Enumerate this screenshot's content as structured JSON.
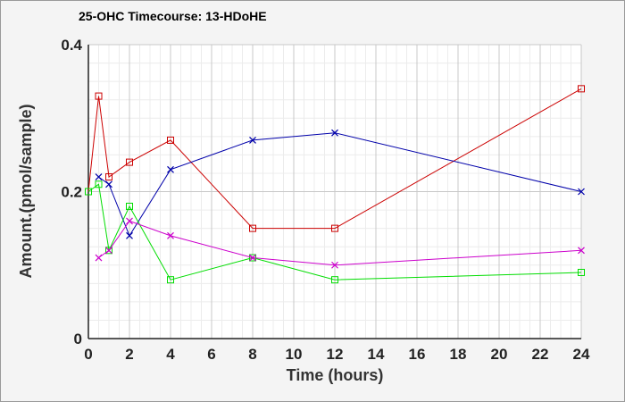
{
  "chart_data": {
    "type": "line",
    "title": "25-OHC Timecourse: 13-HDoHE",
    "xlabel": "Time (hours)",
    "ylabel": "Amount.(pmol/sample)",
    "xlim": [
      0,
      24
    ],
    "ylim": [
      0,
      0.4
    ],
    "xticks": [
      0,
      2,
      4,
      6,
      8,
      10,
      12,
      14,
      16,
      18,
      20,
      22,
      24
    ],
    "yticks": [
      0,
      0.2,
      0.4
    ],
    "ytick_labels": [
      "0",
      "0.2",
      "0.4"
    ],
    "grid": true,
    "legend": "none",
    "series": [
      {
        "color": "#cc0000",
        "marker": "square",
        "x": [
          0,
          0.5,
          1,
          2,
          4,
          8,
          12,
          24
        ],
        "y": [
          0.2,
          0.33,
          0.22,
          0.24,
          0.27,
          0.15,
          0.15,
          0.34
        ]
      },
      {
        "color": "#0000aa",
        "marker": "x",
        "x": [
          0.5,
          1,
          2,
          4,
          8,
          12,
          24
        ],
        "y": [
          0.22,
          0.21,
          0.14,
          0.23,
          0.27,
          0.28,
          0.2
        ]
      },
      {
        "color": "#00dd00",
        "marker": "square",
        "x": [
          0,
          0.5,
          1,
          2,
          4,
          8,
          12,
          24
        ],
        "y": [
          0.2,
          0.21,
          0.12,
          0.18,
          0.08,
          0.11,
          0.08,
          0.09
        ]
      },
      {
        "color": "#cc00cc",
        "marker": "x",
        "x": [
          0.5,
          1,
          2,
          4,
          8,
          12,
          24
        ],
        "y": [
          0.11,
          0.12,
          0.16,
          0.14,
          0.11,
          0.1,
          0.12
        ]
      }
    ]
  }
}
